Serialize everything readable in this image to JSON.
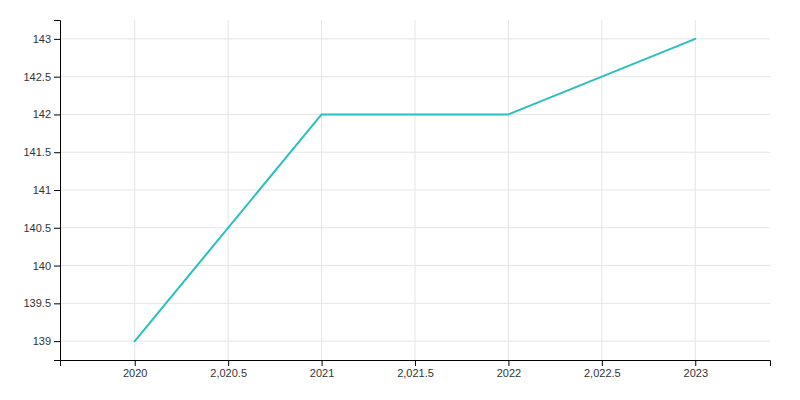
{
  "chart_data": {
    "type": "line",
    "x": [
      2020,
      2021,
      2022,
      2023
    ],
    "values": [
      139,
      142,
      142,
      143
    ],
    "color": "#2abfbf",
    "xlim": [
      2019.6,
      2023.4
    ],
    "ylim": [
      138.75,
      143.25
    ],
    "xticks": [
      2020,
      {
        "value": 2020.5,
        "label": "2,020.5"
      },
      2021,
      {
        "value": 2021.5,
        "label": "2,021.5"
      },
      2022,
      {
        "value": 2022.5,
        "label": "2,022.5"
      },
      2023
    ],
    "yticks": [
      139,
      139.5,
      140,
      140.5,
      141,
      141.5,
      142,
      142.5,
      143
    ],
    "grid": true
  }
}
